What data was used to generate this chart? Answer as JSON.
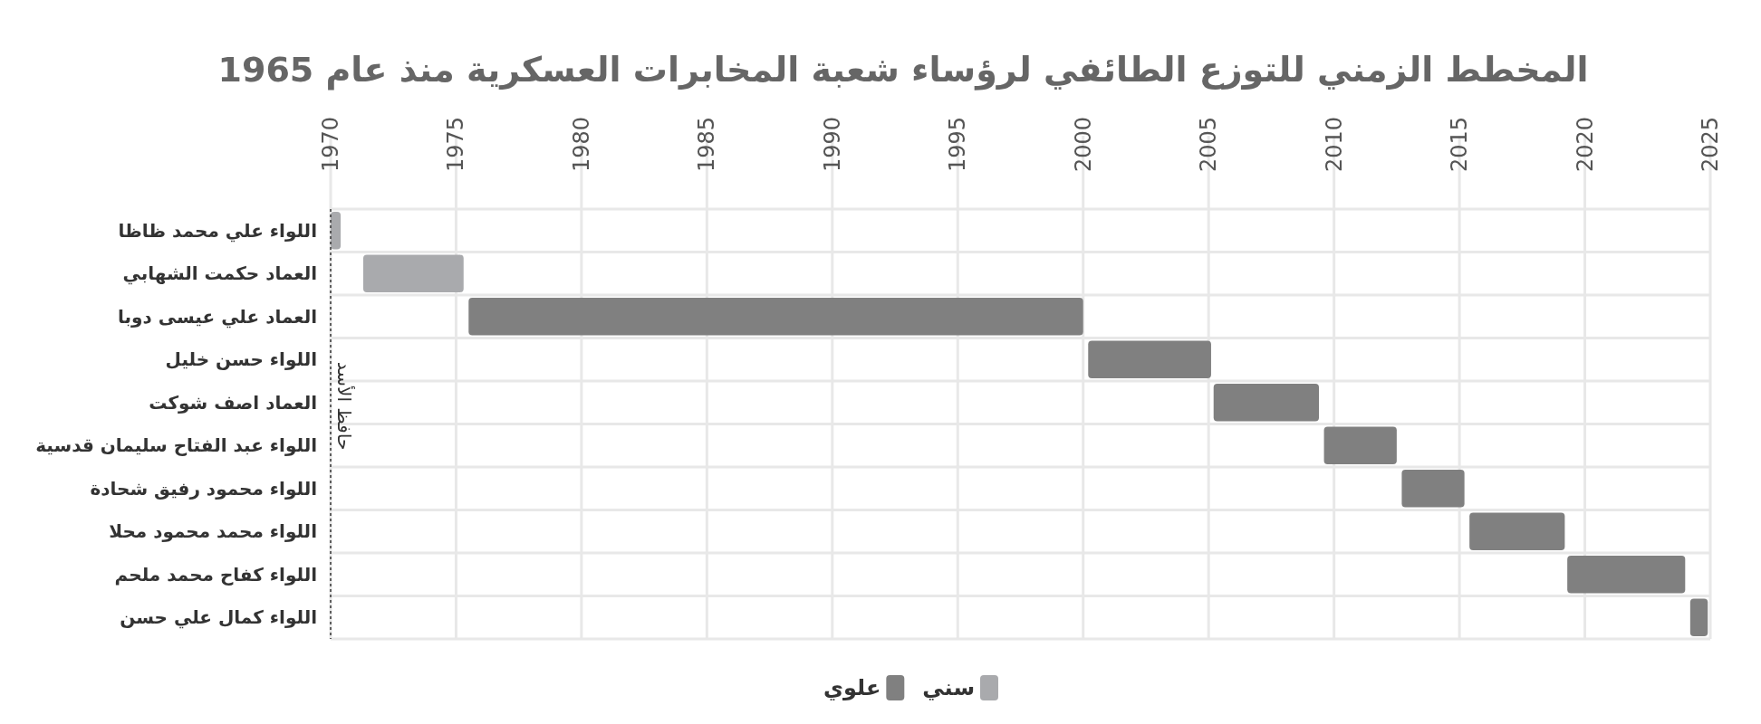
{
  "chart_data": {
    "type": "bar",
    "orientation": "horizontal",
    "title": "المخطط الزمني للتوزع الطائفي لرؤساء شعبة المخابرات العسكرية منذ عام 1965",
    "categories": [
      "اللواء علي محمد ظاظا",
      "العماد حكمت الشهابي",
      "العماد علي عيسى دوبا",
      "اللواء حسن خليل",
      "العماد اصف شوكت",
      "اللواء عبد الفتاح سليمان قدسية",
      "اللواء محمود رفيق شحادة",
      "اللواء محمد محمود محلا",
      "اللواء كفاح محمد ملحم",
      "اللواء كمال علي حسن"
    ],
    "series": [
      {
        "name": "سني",
        "color": "#a9aaad",
        "base": [
          1970,
          1971.3,
          null,
          null,
          null,
          null,
          null,
          null,
          null,
          null
        ],
        "values": [
          0.4,
          4,
          null,
          null,
          null,
          null,
          null,
          null,
          null,
          null
        ]
      },
      {
        "name": "علوي",
        "color": "#808080",
        "base": [
          null,
          null,
          1975.5,
          2000.2,
          2005.2,
          2009.6,
          2012.7,
          2015.4,
          2019.3,
          2024.2
        ],
        "values": [
          null,
          null,
          24.5,
          4.9,
          4.2,
          2.9,
          2.5,
          3.8,
          4.7,
          0.7
        ]
      }
    ],
    "xlim": [
      1970,
      2025
    ],
    "xticks": [
      1970,
      1975,
      1980,
      1985,
      1990,
      1995,
      2000,
      2005,
      2010,
      2015,
      2020,
      2025
    ],
    "grid": true,
    "legend": "bottom",
    "ref_lines": [
      {
        "axis": "x",
        "value": 1970,
        "label": "حافظ الأسد",
        "line_style": "dotted",
        "color": "#333333"
      }
    ]
  }
}
